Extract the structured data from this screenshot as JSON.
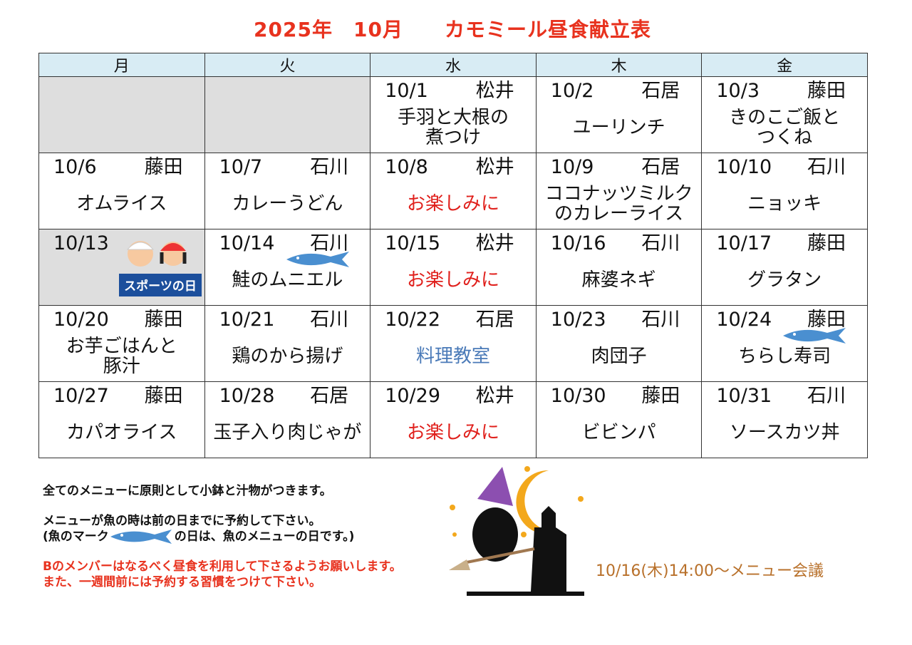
{
  "title": "2025年　10月　　カモミール昼食献立表",
  "weekdays": [
    "月",
    "火",
    "水",
    "木",
    "金"
  ],
  "weeks": [
    [
      {
        "empty": true
      },
      {
        "empty": true
      },
      {
        "date": "10/1",
        "staff": "松井",
        "menu": "手羽と大根の\n煮つけ"
      },
      {
        "date": "10/2",
        "staff": "石居",
        "menu": "ユーリンチ"
      },
      {
        "date": "10/3",
        "staff": "藤田",
        "menu": "きのこご飯と\nつくね"
      }
    ],
    [
      {
        "date": "10/6",
        "staff": "藤田",
        "menu": "オムライス"
      },
      {
        "date": "10/7",
        "staff": "石川",
        "menu": "カレーうどん"
      },
      {
        "date": "10/8",
        "staff": "松井",
        "menu": "お楽しみに",
        "style": "red"
      },
      {
        "date": "10/9",
        "staff": "石居",
        "menu": "ココナッツミルク\nのカレーライス"
      },
      {
        "date": "10/10",
        "staff": "石川",
        "menu": "ニョッキ"
      }
    ],
    [
      {
        "date": "10/13",
        "holiday": true,
        "badge": "スポーツの日"
      },
      {
        "date": "10/14",
        "staff": "石川",
        "menu": "鮭のムニエル",
        "fish": true
      },
      {
        "date": "10/15",
        "staff": "松井",
        "menu": "お楽しみに",
        "style": "red"
      },
      {
        "date": "10/16",
        "staff": "石川",
        "menu": "麻婆ネギ"
      },
      {
        "date": "10/17",
        "staff": "藤田",
        "menu": "グラタン"
      }
    ],
    [
      {
        "date": "10/20",
        "staff": "藤田",
        "menu": "お芋ごはんと\n豚汁"
      },
      {
        "date": "10/21",
        "staff": "石川",
        "menu": "鶏のから揚げ"
      },
      {
        "date": "10/22",
        "staff": "石居",
        "menu": "料理教室",
        "style": "blue"
      },
      {
        "date": "10/23",
        "staff": "石川",
        "menu": "肉団子"
      },
      {
        "date": "10/24",
        "staff": "藤田",
        "menu": "ちらし寿司",
        "fish": true
      }
    ],
    [
      {
        "date": "10/27",
        "staff": "藤田",
        "menu": "カパオライス"
      },
      {
        "date": "10/28",
        "staff": "石居",
        "menu": "玉子入り肉じゃが"
      },
      {
        "date": "10/29",
        "staff": "松井",
        "menu": "お楽しみに",
        "style": "red"
      },
      {
        "date": "10/30",
        "staff": "藤田",
        "menu": "ビビンパ"
      },
      {
        "date": "10/31",
        "staff": "石川",
        "menu": "ソースカツ丼"
      }
    ]
  ],
  "notes": {
    "line1": "全てのメニューに原則として小鉢と汁物がつきます。",
    "line2": "メニューが魚の時は前の日までに予約して下さい。",
    "line3a": "(魚のマーク",
    "line3b": "の日は、魚のメニューの日です。)",
    "line4": "Bのメンバーはなるべく昼食を利用して下さるようお願いします。",
    "line5": "また、一週間前には予約する習慣をつけて下さい。"
  },
  "meeting": "10/16(木)14:00〜メニュー会議",
  "colors": {
    "title": "#e8321e",
    "header": "#d8ecf4",
    "red": "#e0201c",
    "blue": "#4a7ab8",
    "fish": "#4a8fd0",
    "meeting": "#b8702a"
  }
}
